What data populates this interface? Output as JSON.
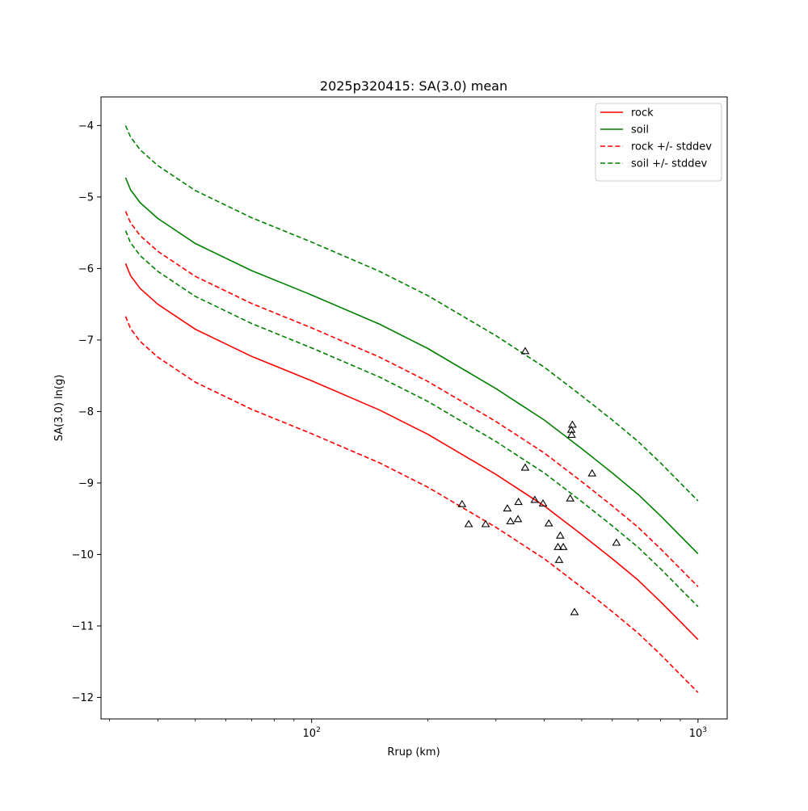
{
  "chart_data": {
    "type": "line",
    "title": "2025p320415: SA(3.0) mean",
    "xlabel": "Rrup (km)",
    "ylabel": "SA(3.0) ln(g)",
    "xscale": "log",
    "xlim": [
      28.5,
      1190
    ],
    "ylim": [
      -12.3,
      -3.6
    ],
    "xticks": [
      {
        "value": 100,
        "base": "10",
        "exp": "2"
      },
      {
        "value": 1000,
        "base": "10",
        "exp": "3"
      }
    ],
    "yticks": [
      {
        "value": -4,
        "label": "−4"
      },
      {
        "value": -5,
        "label": "−5"
      },
      {
        "value": -6,
        "label": "−6"
      },
      {
        "value": -7,
        "label": "−7"
      },
      {
        "value": -8,
        "label": "−8"
      },
      {
        "value": -9,
        "label": "−9"
      },
      {
        "value": -10,
        "label": "−10"
      },
      {
        "value": -11,
        "label": "−11"
      },
      {
        "value": -12,
        "label": "−12"
      }
    ],
    "grid": false,
    "legend_position": "top-right",
    "series": [
      {
        "name": "rock",
        "color": "#ff0000",
        "dash": "solid",
        "x": [
          33,
          34,
          36,
          40,
          50,
          70,
          100,
          150,
          200,
          300,
          400,
          500,
          600,
          700,
          800,
          900,
          1000
        ],
        "y": [
          -5.93,
          -6.1,
          -6.28,
          -6.5,
          -6.85,
          -7.23,
          -7.57,
          -7.98,
          -8.32,
          -8.88,
          -9.32,
          -9.72,
          -10.06,
          -10.36,
          -10.66,
          -10.94,
          -11.19
        ]
      },
      {
        "name": "soil",
        "color": "#008000",
        "dash": "solid",
        "x": [
          33,
          34,
          36,
          40,
          50,
          70,
          100,
          150,
          200,
          300,
          400,
          500,
          600,
          700,
          800,
          900,
          1000
        ],
        "y": [
          -4.73,
          -4.9,
          -5.08,
          -5.3,
          -5.65,
          -6.03,
          -6.37,
          -6.78,
          -7.12,
          -7.68,
          -8.12,
          -8.52,
          -8.86,
          -9.16,
          -9.46,
          -9.74,
          -9.99
        ]
      },
      {
        "name": "rock +/- stddev",
        "color": "#ff0000",
        "dash": "dashed",
        "x": [
          33,
          34,
          36,
          40,
          50,
          70,
          100,
          150,
          200,
          300,
          400,
          500,
          600,
          700,
          800,
          900,
          1000
        ],
        "y": [
          -5.2,
          -5.36,
          -5.54,
          -5.76,
          -6.11,
          -6.49,
          -6.83,
          -7.24,
          -7.58,
          -8.14,
          -8.58,
          -8.98,
          -9.32,
          -9.62,
          -9.92,
          -10.2,
          -10.45
        ]
      },
      {
        "name": "",
        "color": "#ff0000",
        "dash": "dashed",
        "x": [
          33,
          34,
          36,
          40,
          50,
          70,
          100,
          150,
          200,
          300,
          400,
          500,
          600,
          700,
          800,
          900,
          1000
        ],
        "y": [
          -6.67,
          -6.84,
          -7.02,
          -7.24,
          -7.59,
          -7.97,
          -8.31,
          -8.72,
          -9.06,
          -9.62,
          -10.06,
          -10.46,
          -10.8,
          -11.1,
          -11.4,
          -11.68,
          -11.93
        ]
      },
      {
        "name": "soil +/- stddev",
        "color": "#008000",
        "dash": "dashed",
        "x": [
          33,
          34,
          36,
          40,
          50,
          70,
          100,
          150,
          200,
          300,
          400,
          500,
          600,
          700,
          800,
          900,
          1000
        ],
        "y": [
          -4.0,
          -4.16,
          -4.34,
          -4.56,
          -4.91,
          -5.29,
          -5.63,
          -6.04,
          -6.38,
          -6.94,
          -7.38,
          -7.78,
          -8.12,
          -8.42,
          -8.72,
          -9.0,
          -9.25
        ]
      },
      {
        "name": "",
        "color": "#008000",
        "dash": "dashed",
        "x": [
          33,
          34,
          36,
          40,
          50,
          70,
          100,
          150,
          200,
          300,
          400,
          500,
          600,
          700,
          800,
          900,
          1000
        ],
        "y": [
          -5.47,
          -5.64,
          -5.82,
          -6.04,
          -6.39,
          -6.77,
          -7.11,
          -7.52,
          -7.86,
          -8.42,
          -8.86,
          -9.26,
          -9.6,
          -9.9,
          -10.2,
          -10.48,
          -10.73
        ]
      }
    ],
    "observations": {
      "marker": "triangle-open",
      "color": "#000000",
      "points": [
        {
          "x": 357,
          "y": -7.16
        },
        {
          "x": 473,
          "y": -8.19
        },
        {
          "x": 470,
          "y": -8.26
        },
        {
          "x": 471,
          "y": -8.33
        },
        {
          "x": 532,
          "y": -8.87
        },
        {
          "x": 357,
          "y": -8.79
        },
        {
          "x": 467,
          "y": -9.22
        },
        {
          "x": 245,
          "y": -9.3
        },
        {
          "x": 378,
          "y": -9.24
        },
        {
          "x": 397,
          "y": -9.29
        },
        {
          "x": 343,
          "y": -9.27
        },
        {
          "x": 321,
          "y": -9.36
        },
        {
          "x": 255,
          "y": -9.58
        },
        {
          "x": 282,
          "y": -9.58
        },
        {
          "x": 342,
          "y": -9.51
        },
        {
          "x": 327,
          "y": -9.54
        },
        {
          "x": 411,
          "y": -9.57
        },
        {
          "x": 440,
          "y": -9.74
        },
        {
          "x": 434,
          "y": -9.9
        },
        {
          "x": 448,
          "y": -9.9
        },
        {
          "x": 437,
          "y": -10.08
        },
        {
          "x": 615,
          "y": -9.84
        },
        {
          "x": 479,
          "y": -10.81
        }
      ]
    }
  }
}
